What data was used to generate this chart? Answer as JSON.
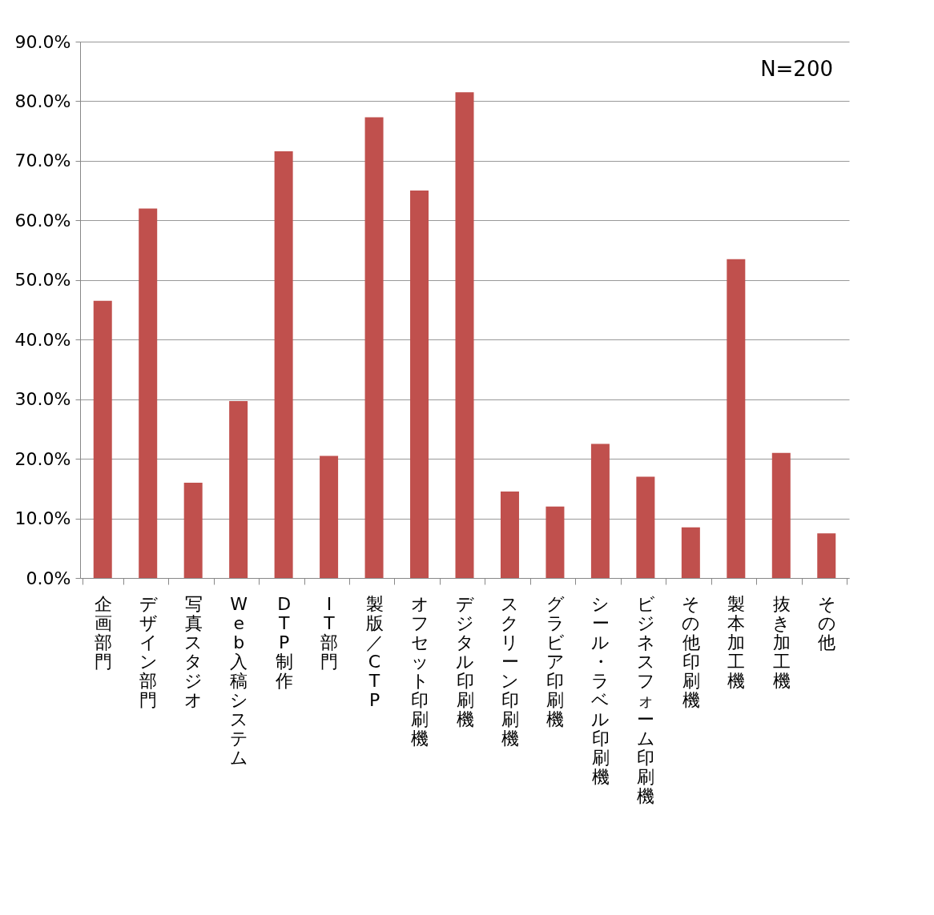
{
  "chart_data": {
    "type": "bar",
    "categories": [
      "企画部門",
      "デザイン部門",
      "写真スタジオ",
      "Web入稿システム",
      "DTP制作",
      "IT部門",
      "製版／CTP",
      "オフセット印刷機",
      "デジタル印刷機",
      "スクリーン印刷機",
      "グラビア印刷機",
      "シール・ラベル印刷機",
      "ビジネスフォーム印刷機",
      "その他印刷機",
      "製本加工機",
      "抜き加工機",
      "その他"
    ],
    "values": [
      46.5,
      62.0,
      16.0,
      29.7,
      71.6,
      20.5,
      77.3,
      65.0,
      81.5,
      14.5,
      12.0,
      22.5,
      17.0,
      8.5,
      53.5,
      21.0,
      7.5
    ],
    "color": "#c0504d",
    "ylim": [
      0,
      90
    ],
    "yticks": [
      {
        "value": 0,
        "label": "0.0%"
      },
      {
        "value": 10,
        "label": "10.0%"
      },
      {
        "value": 20,
        "label": "20.0%"
      },
      {
        "value": 30,
        "label": "30.0%"
      },
      {
        "value": 40,
        "label": "40.0%"
      },
      {
        "value": 50,
        "label": "50.0%"
      },
      {
        "value": 60,
        "label": "60.0%"
      },
      {
        "value": 70,
        "label": "70.0%"
      },
      {
        "value": 80,
        "label": "80.0%"
      },
      {
        "value": 90,
        "label": "90.0%"
      }
    ],
    "grid": "y",
    "annotations": [
      "N=200"
    ]
  }
}
